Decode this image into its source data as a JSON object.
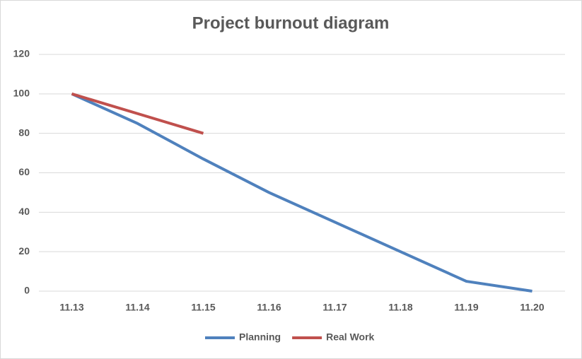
{
  "chart_data": {
    "type": "line",
    "title": "Project burnout diagram",
    "categories": [
      "11.13",
      "11.14",
      "11.15",
      "11.16",
      "11.17",
      "11.18",
      "11.19",
      "11.20"
    ],
    "series": [
      {
        "name": "Planning",
        "color": "#4f81bd",
        "values": [
          100,
          85,
          67,
          50,
          35,
          20,
          5,
          0
        ]
      },
      {
        "name": "Real Work",
        "color": "#c0504d",
        "values": [
          100,
          90,
          80,
          null,
          null,
          null,
          null,
          null
        ]
      }
    ],
    "ylim": [
      0,
      120
    ],
    "yticks": [
      0,
      20,
      40,
      60,
      80,
      100,
      120
    ],
    "grid": true,
    "legend": "bottom"
  }
}
